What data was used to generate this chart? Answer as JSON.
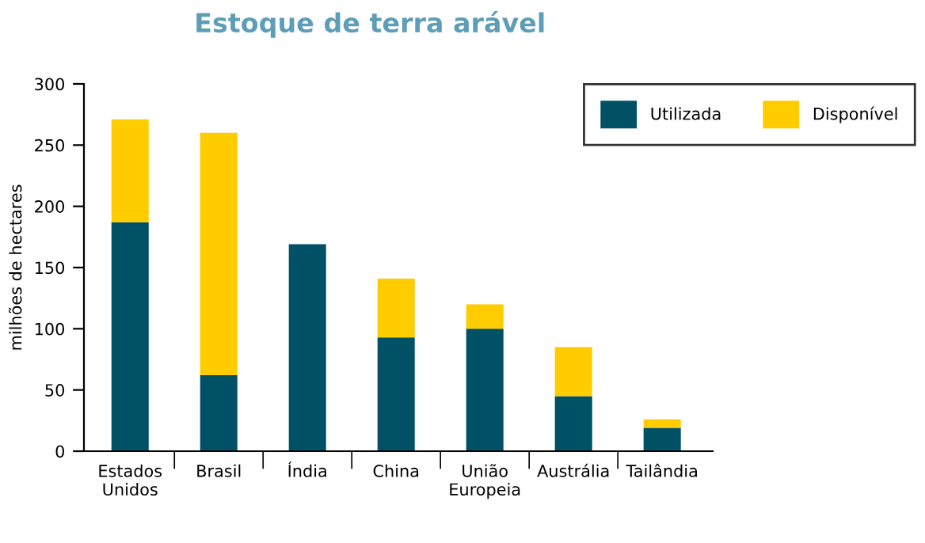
{
  "chart_data": {
    "type": "bar",
    "title": "Estoque de terra arável",
    "ylabel": "milhões de hectares",
    "categories": [
      "Estados\nUnidos",
      "Brasil",
      "Índia",
      "China",
      "União\nEuropeia",
      "Austrália",
      "Tailândia"
    ],
    "stacked": true,
    "series": [
      {
        "name": "Utilizada",
        "color": "#005066",
        "values": [
          187,
          62,
          169,
          93,
          100,
          45,
          19
        ]
      },
      {
        "name": "Disponível",
        "color": "#ffcc00",
        "values": [
          84,
          198,
          0,
          48,
          20,
          40,
          7
        ]
      }
    ],
    "ylim": [
      0,
      300
    ],
    "yticks": [
      0,
      50,
      100,
      150,
      200,
      250,
      300
    ],
    "grid": false,
    "legend": "top right"
  }
}
